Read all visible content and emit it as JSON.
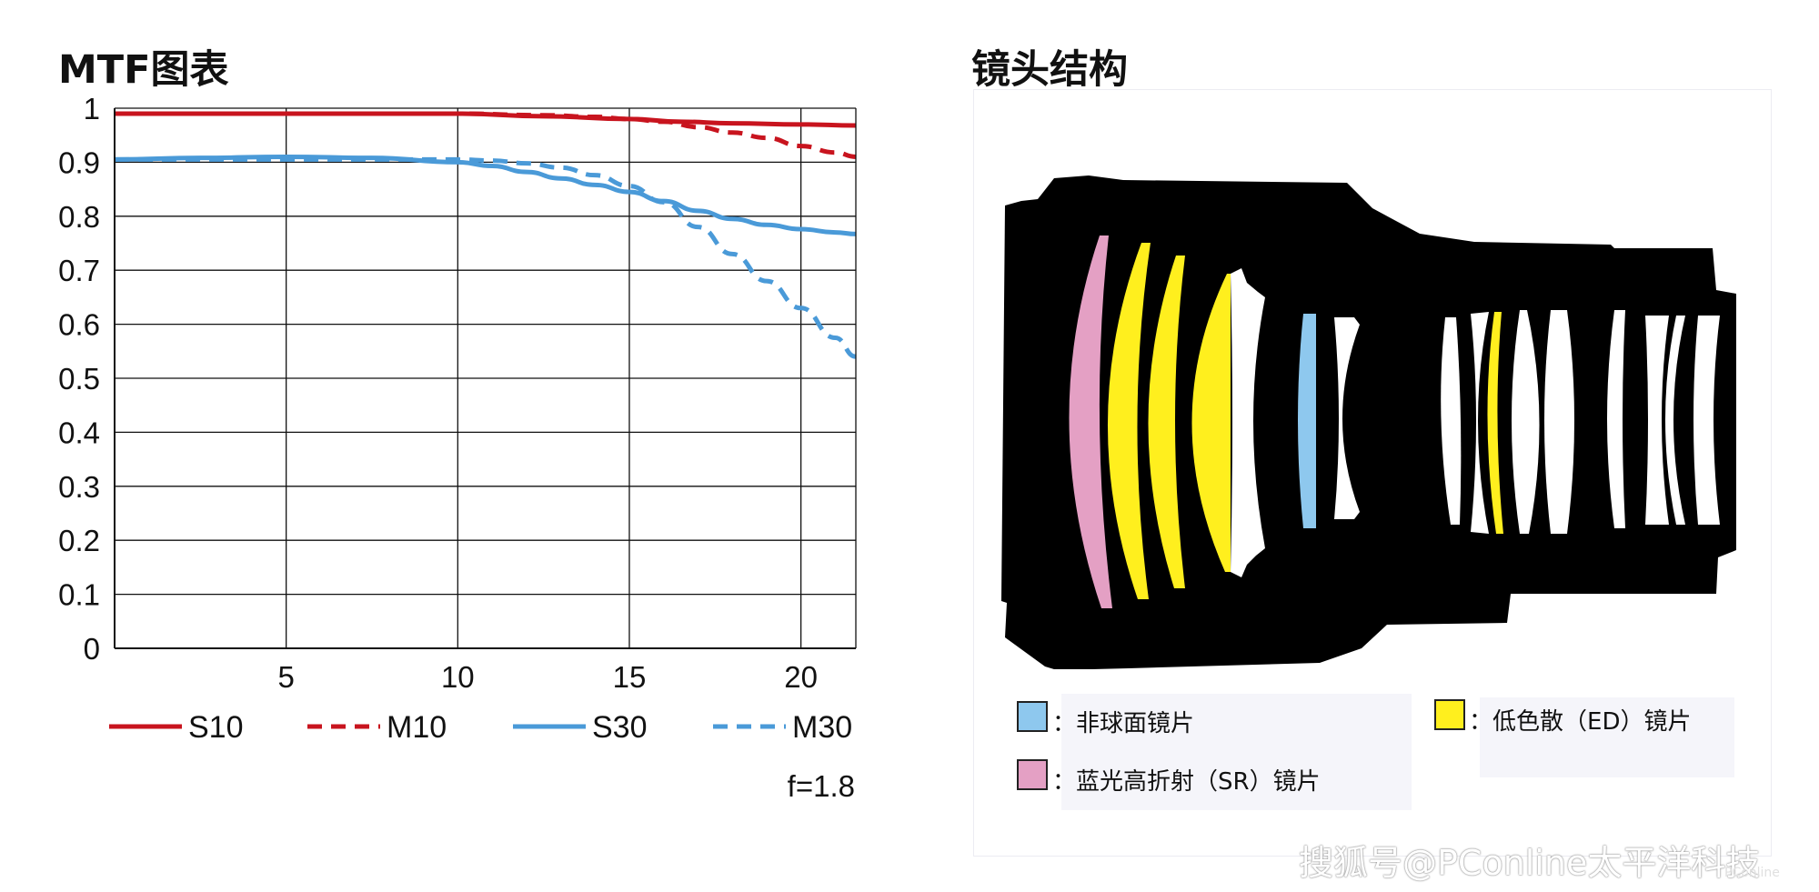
{
  "mtf_title": "MTF图表",
  "lens_title": "镜头结构",
  "chart_data": {
    "type": "line",
    "title": "MTF图表",
    "xlabel": "",
    "ylabel": "",
    "xlim": [
      0,
      21.6
    ],
    "ylim": [
      0,
      1
    ],
    "x_ticks": [
      5,
      10,
      15,
      20
    ],
    "x_tick_labels": [
      "5",
      "10",
      "15",
      "20"
    ],
    "y_ticks": [
      0,
      0.1,
      0.2,
      0.3,
      0.4,
      0.5,
      0.6,
      0.7,
      0.8,
      0.9,
      1
    ],
    "y_tick_labels": [
      "0",
      "0.1",
      "0.2",
      "0.3",
      "0.4",
      "0.5",
      "0.6",
      "0.7",
      "0.8",
      "0.9",
      "1"
    ],
    "grid": true,
    "legend_position": "bottom",
    "annotation": "f=1.8",
    "series": [
      {
        "name": "S10",
        "color": "#c8141e",
        "dash": "solid",
        "x": [
          0,
          2.5,
          5,
          7.5,
          10,
          12.5,
          15,
          16.5,
          18,
          20,
          21.6
        ],
        "y": [
          0.99,
          0.99,
          0.99,
          0.99,
          0.99,
          0.985,
          0.98,
          0.975,
          0.972,
          0.97,
          0.968
        ]
      },
      {
        "name": "M10",
        "color": "#c8141e",
        "dash": "dashed",
        "x": [
          0,
          2.5,
          5,
          7.5,
          10,
          12.5,
          14,
          15,
          16,
          17,
          18,
          19,
          20,
          21,
          21.6
        ],
        "y": [
          0.99,
          0.99,
          0.99,
          0.99,
          0.99,
          0.987,
          0.984,
          0.98,
          0.975,
          0.965,
          0.955,
          0.945,
          0.93,
          0.918,
          0.91
        ]
      },
      {
        "name": "S30",
        "color": "#4a9ad8",
        "dash": "solid",
        "x": [
          0,
          2.5,
          5,
          7.5,
          10,
          11,
          12,
          13,
          14,
          15,
          16,
          17,
          18,
          19,
          20,
          21,
          21.6
        ],
        "y": [
          0.905,
          0.908,
          0.91,
          0.908,
          0.9,
          0.893,
          0.882,
          0.87,
          0.858,
          0.845,
          0.828,
          0.81,
          0.795,
          0.784,
          0.776,
          0.77,
          0.767
        ]
      },
      {
        "name": "M30",
        "color": "#4a9ad8",
        "dash": "dashed",
        "x": [
          0,
          2.5,
          5,
          7.5,
          10,
          11,
          12,
          13,
          14,
          15,
          16,
          17,
          18,
          19,
          20,
          21,
          21.6
        ],
        "y": [
          0.905,
          0.905,
          0.905,
          0.905,
          0.905,
          0.903,
          0.898,
          0.89,
          0.876,
          0.856,
          0.826,
          0.78,
          0.73,
          0.68,
          0.63,
          0.575,
          0.54
        ]
      }
    ]
  },
  "lens_legend": {
    "aspherical": {
      "label": "非球面镜片",
      "color": "#8ec8ee"
    },
    "ed": {
      "label": "低色散（ED）镜片",
      "color": "#ffef1e"
    },
    "sr": {
      "label": "蓝光高折射（SR）镜片",
      "color": "#e4a0c4"
    },
    "separator": "："
  },
  "watermark": "搜狐号@PConline太平洋科技",
  "watermark_small": "PConline"
}
